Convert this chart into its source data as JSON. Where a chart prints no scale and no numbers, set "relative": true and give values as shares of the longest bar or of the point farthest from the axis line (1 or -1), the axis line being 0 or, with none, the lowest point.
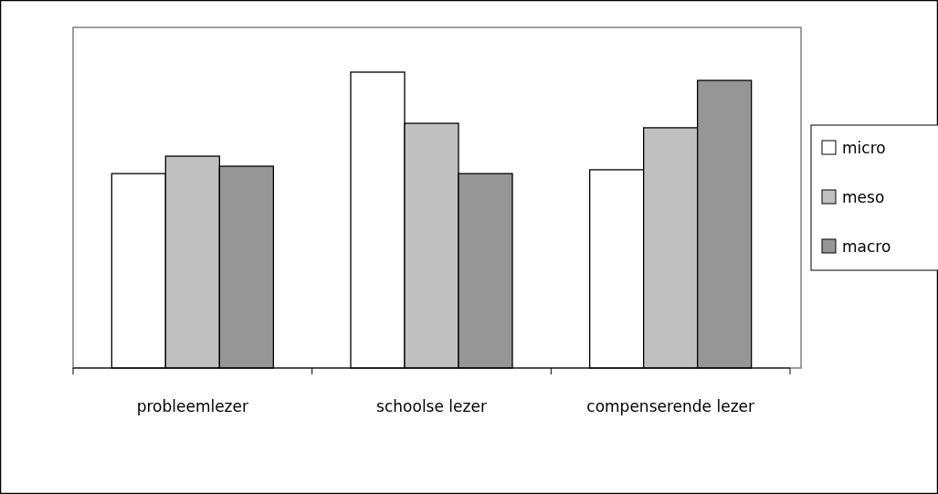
{
  "chart_data": {
    "type": "bar",
    "relative": true,
    "categories": [
      "probleemlezer",
      "schoolse lezer",
      "compenserende lezer"
    ],
    "series": [
      {
        "name": "micro",
        "color": "#ffffff",
        "values": [
          0.657,
          1,
          0.67
        ]
      },
      {
        "name": "meso",
        "color": "#c0c0c0",
        "values": [
          0.716,
          0.827,
          0.812
        ]
      },
      {
        "name": "macro",
        "color": "#969696",
        "values": [
          0.682,
          0.657,
          0.972
        ]
      }
    ],
    "legend": "right"
  }
}
